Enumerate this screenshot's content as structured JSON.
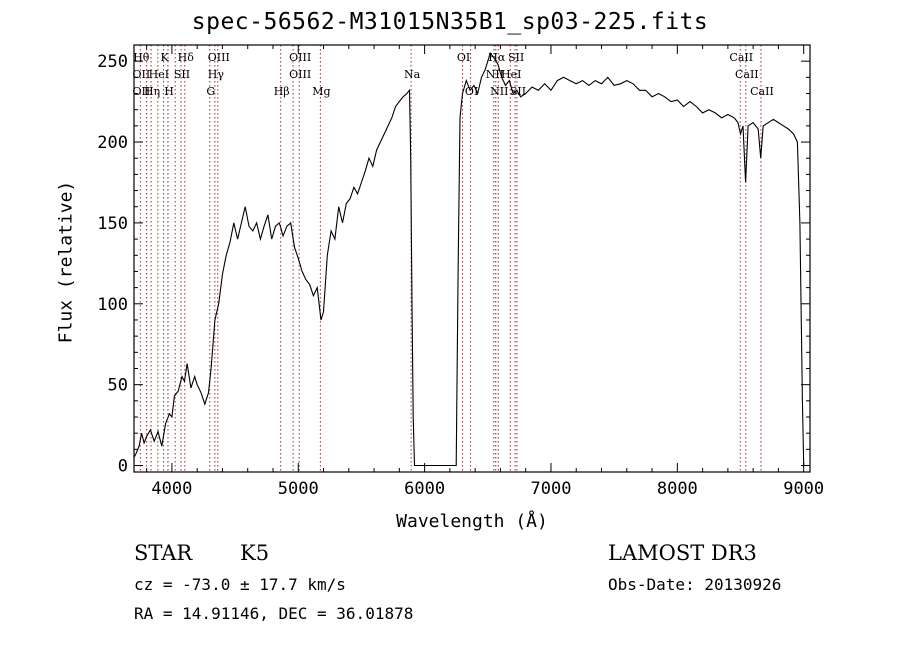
{
  "title": "spec-56562-M31015N35B1_sp03-225.fits",
  "info": {
    "object_class": "STAR",
    "subclass": "K5",
    "survey": "LAMOST DR3",
    "cz": "cz = -73.0 ± 17.7 km/s",
    "obs_date": "Obs-Date: 20130926",
    "coords": "RA =  14.91146, DEC =  36.01878"
  },
  "chart_data": {
    "type": "line",
    "xlabel": "Wavelength (Å)",
    "ylabel": "Flux (relative)",
    "xlim": [
      3700,
      9050
    ],
    "ylim": [
      -4,
      260
    ],
    "xticks": [
      4000,
      5000,
      6000,
      7000,
      8000,
      9000
    ],
    "yticks": [
      0,
      50,
      100,
      150,
      200,
      250
    ],
    "series": [
      {
        "values": [
          [
            3700,
            5
          ],
          [
            3720,
            8
          ],
          [
            3740,
            12
          ],
          [
            3760,
            20
          ],
          [
            3780,
            14
          ],
          [
            3800,
            18
          ],
          [
            3830,
            22
          ],
          [
            3860,
            15
          ],
          [
            3890,
            21
          ],
          [
            3920,
            12
          ],
          [
            3950,
            26
          ],
          [
            3980,
            32
          ],
          [
            4000,
            30
          ],
          [
            4020,
            43
          ],
          [
            4050,
            46
          ],
          [
            4080,
            55
          ],
          [
            4100,
            52
          ],
          [
            4120,
            63
          ],
          [
            4150,
            48
          ],
          [
            4180,
            55
          ],
          [
            4200,
            50
          ],
          [
            4230,
            45
          ],
          [
            4260,
            38
          ],
          [
            4290,
            45
          ],
          [
            4310,
            60
          ],
          [
            4340,
            90
          ],
          [
            4370,
            100
          ],
          [
            4400,
            118
          ],
          [
            4430,
            130
          ],
          [
            4460,
            138
          ],
          [
            4490,
            150
          ],
          [
            4520,
            140
          ],
          [
            4550,
            150
          ],
          [
            4580,
            160
          ],
          [
            4610,
            148
          ],
          [
            4640,
            145
          ],
          [
            4670,
            150
          ],
          [
            4700,
            140
          ],
          [
            4730,
            148
          ],
          [
            4760,
            155
          ],
          [
            4790,
            140
          ],
          [
            4820,
            148
          ],
          [
            4850,
            150
          ],
          [
            4880,
            142
          ],
          [
            4910,
            148
          ],
          [
            4940,
            150
          ],
          [
            4970,
            135
          ],
          [
            5000,
            128
          ],
          [
            5030,
            120
          ],
          [
            5060,
            115
          ],
          [
            5090,
            112
          ],
          [
            5120,
            105
          ],
          [
            5150,
            110
          ],
          [
            5180,
            90
          ],
          [
            5200,
            95
          ],
          [
            5230,
            130
          ],
          [
            5260,
            145
          ],
          [
            5290,
            140
          ],
          [
            5320,
            160
          ],
          [
            5350,
            150
          ],
          [
            5380,
            162
          ],
          [
            5410,
            165
          ],
          [
            5440,
            172
          ],
          [
            5470,
            168
          ],
          [
            5500,
            175
          ],
          [
            5530,
            182
          ],
          [
            5560,
            190
          ],
          [
            5590,
            185
          ],
          [
            5620,
            195
          ],
          [
            5650,
            200
          ],
          [
            5680,
            205
          ],
          [
            5710,
            210
          ],
          [
            5740,
            215
          ],
          [
            5770,
            222
          ],
          [
            5800,
            225
          ],
          [
            5830,
            228
          ],
          [
            5860,
            230
          ],
          [
            5880,
            232
          ],
          [
            5890,
            190
          ],
          [
            5900,
            100
          ],
          [
            5910,
            30
          ],
          [
            5920,
            0
          ],
          [
            5935,
            0
          ],
          [
            6250,
            0
          ],
          [
            6265,
            120
          ],
          [
            6280,
            215
          ],
          [
            6300,
            230
          ],
          [
            6330,
            238
          ],
          [
            6360,
            232
          ],
          [
            6390,
            235
          ],
          [
            6420,
            230
          ],
          [
            6450,
            240
          ],
          [
            6480,
            245
          ],
          [
            6500,
            250
          ],
          [
            6520,
            255
          ],
          [
            6550,
            252
          ],
          [
            6580,
            248
          ],
          [
            6610,
            240
          ],
          [
            6640,
            235
          ],
          [
            6670,
            238
          ],
          [
            6700,
            230
          ],
          [
            6730,
            232
          ],
          [
            6760,
            228
          ],
          [
            6800,
            230
          ],
          [
            6850,
            234
          ],
          [
            6900,
            232
          ],
          [
            6950,
            236
          ],
          [
            7000,
            232
          ],
          [
            7050,
            238
          ],
          [
            7100,
            240
          ],
          [
            7150,
            238
          ],
          [
            7200,
            236
          ],
          [
            7250,
            238
          ],
          [
            7300,
            235
          ],
          [
            7350,
            238
          ],
          [
            7400,
            236
          ],
          [
            7450,
            240
          ],
          [
            7500,
            235
          ],
          [
            7550,
            236
          ],
          [
            7600,
            238
          ],
          [
            7650,
            236
          ],
          [
            7700,
            232
          ],
          [
            7750,
            232
          ],
          [
            7800,
            228
          ],
          [
            7850,
            230
          ],
          [
            7900,
            228
          ],
          [
            7950,
            225
          ],
          [
            8000,
            226
          ],
          [
            8050,
            222
          ],
          [
            8100,
            225
          ],
          [
            8150,
            222
          ],
          [
            8200,
            218
          ],
          [
            8250,
            220
          ],
          [
            8300,
            218
          ],
          [
            8350,
            215
          ],
          [
            8400,
            217
          ],
          [
            8450,
            215
          ],
          [
            8480,
            212
          ],
          [
            8500,
            205
          ],
          [
            8520,
            210
          ],
          [
            8540,
            175
          ],
          [
            8560,
            210
          ],
          [
            8600,
            212
          ],
          [
            8640,
            208
          ],
          [
            8660,
            190
          ],
          [
            8680,
            210
          ],
          [
            8720,
            212
          ],
          [
            8760,
            214
          ],
          [
            8800,
            212
          ],
          [
            8840,
            210
          ],
          [
            8880,
            208
          ],
          [
            8920,
            205
          ],
          [
            8950,
            200
          ],
          [
            8970,
            150
          ],
          [
            8990,
            40
          ],
          [
            9000,
            0
          ]
        ]
      }
    ],
    "lines": [
      {
        "w": 3750,
        "top": "Hθ",
        "mid": "OII",
        "low": "OII"
      },
      {
        "w": 3800
      },
      {
        "w": 3835,
        "low": "Hη"
      },
      {
        "w": 3889,
        "mid": "HeI"
      },
      {
        "w": 3934,
        "top": "K"
      },
      {
        "w": 3969,
        "low": "H"
      },
      {
        "w": 4026
      },
      {
        "w": 4072,
        "mid": "SII"
      },
      {
        "w": 4102,
        "top": "Hδ"
      },
      {
        "w": 4300,
        "low": "G"
      },
      {
        "w": 4340,
        "mid": "Hγ"
      },
      {
        "w": 4363,
        "top": "OIII"
      },
      {
        "w": 4861,
        "low": "Hβ"
      },
      {
        "w": 4959
      },
      {
        "w": 5007,
        "top": "OIII",
        "mid": "OIII"
      },
      {
        "w": 5175,
        "low": "Mg"
      },
      {
        "w": 5893,
        "mid": "Na"
      },
      {
        "w": 6300,
        "top": "OI"
      },
      {
        "w": 6364,
        "low": "OI"
      },
      {
        "w": 6548,
        "mid": "NII"
      },
      {
        "w": 6563,
        "top": "Hα"
      },
      {
        "w": 6583,
        "low": "NII"
      },
      {
        "w": 6678,
        "mid": "HeI"
      },
      {
        "w": 6716,
        "top": "SII"
      },
      {
        "w": 6731,
        "low": "SII"
      },
      {
        "w": 8498,
        "top": "CaII"
      },
      {
        "w": 8542,
        "mid": "CaII"
      },
      {
        "w": 8662,
        "low": "CaII"
      }
    ]
  }
}
